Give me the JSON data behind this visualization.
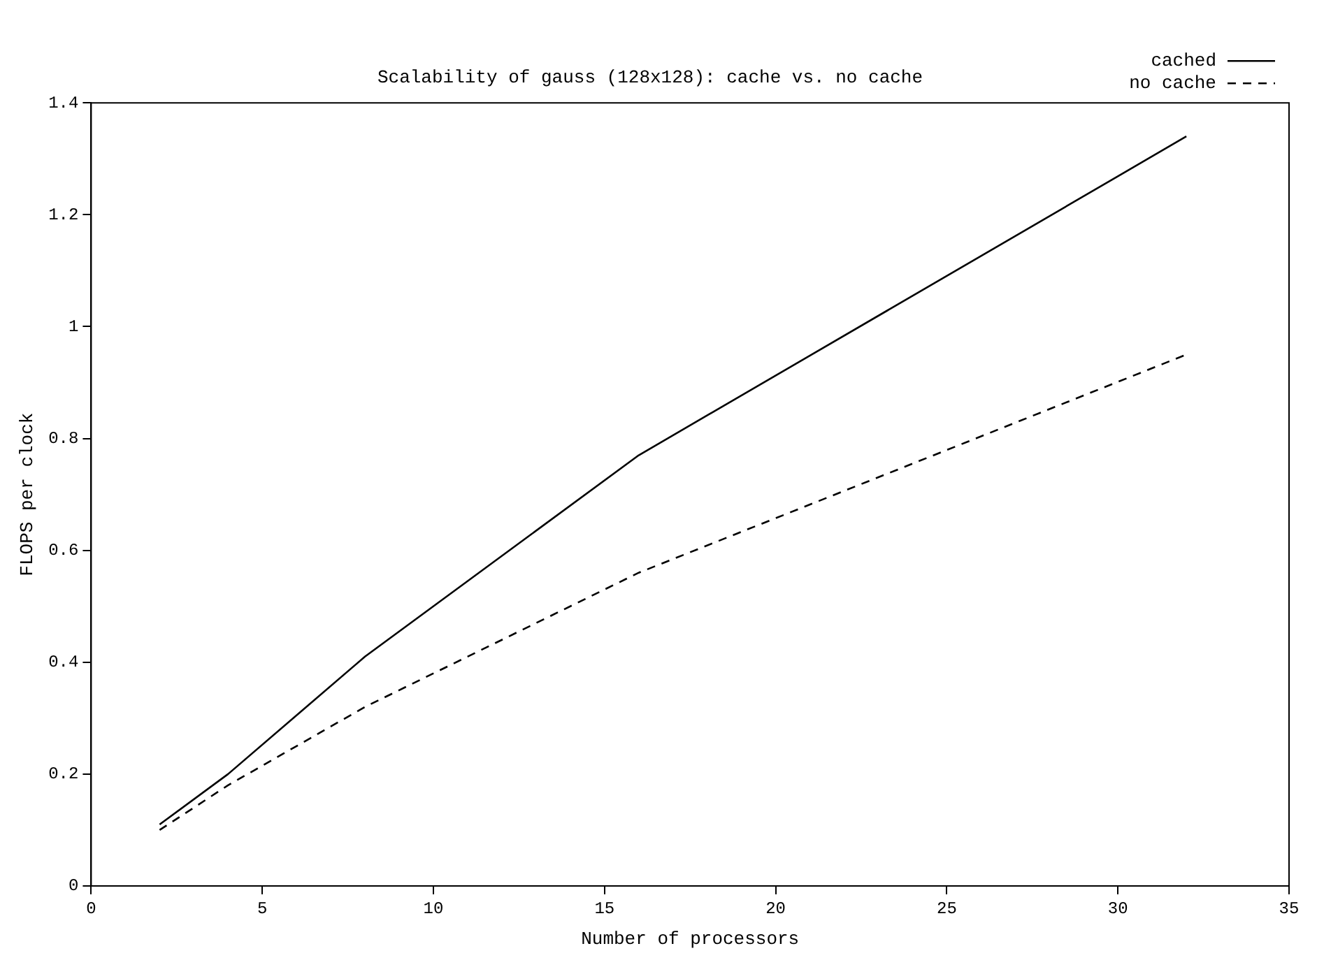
{
  "chart_data": {
    "type": "line",
    "title": "Scalability of gauss (128x128): cache vs. no cache",
    "xlabel": "Number of processors",
    "ylabel": "FLOPS per clock",
    "xlim": [
      0,
      35
    ],
    "xticks": [
      0,
      5,
      10,
      15,
      20,
      25,
      30,
      35
    ],
    "ylim": [
      0,
      1.4
    ],
    "yticks": [
      0,
      0.2,
      0.4,
      0.6,
      0.8,
      1,
      1.2,
      1.4
    ],
    "grid": false,
    "legend": "top right",
    "marker": "none",
    "series": [
      {
        "name": "cached",
        "color": "#000000",
        "line_style": "solid",
        "x": [
          2,
          4,
          8,
          16,
          32
        ],
        "values": [
          0.11,
          0.2,
          0.41,
          0.77,
          1.34
        ]
      },
      {
        "name": "no cache",
        "color": "#000000",
        "line_style": "dashed",
        "x": [
          2,
          4,
          8,
          16,
          32
        ],
        "values": [
          0.1,
          0.18,
          0.32,
          0.56,
          0.95
        ]
      }
    ]
  }
}
